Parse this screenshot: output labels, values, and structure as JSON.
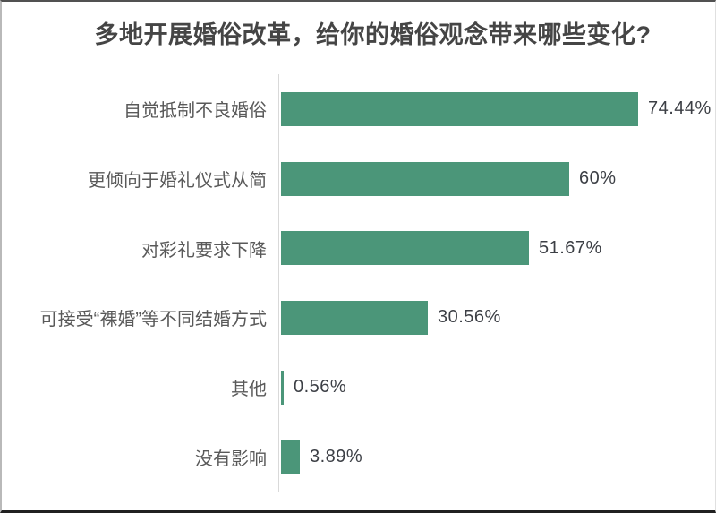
{
  "chart_data": {
    "type": "bar",
    "orientation": "horizontal",
    "title": "多地开展婚俗改革，给你的婚俗观念带来哪些变化?",
    "categories": [
      "自觉抵制不良婚俗",
      "更倾向于婚礼仪式从简",
      "对彩礼要求下降",
      "可接受“裸婚”等不同结婚方式",
      "其他",
      "没有影响"
    ],
    "values": [
      74.44,
      60,
      51.67,
      30.56,
      0.56,
      3.89
    ],
    "value_labels": [
      "74.44%",
      "60%",
      "51.67%",
      "30.56%",
      "0.56%",
      "3.89%"
    ],
    "unit": "%",
    "xlim": [
      0,
      80
    ],
    "grid": false,
    "legend": false,
    "bar_color": "#4b9679",
    "axis_color": "#d9d9d9",
    "title_color": "#454545",
    "category_color": "#595959",
    "value_color": "#3c3f45"
  }
}
